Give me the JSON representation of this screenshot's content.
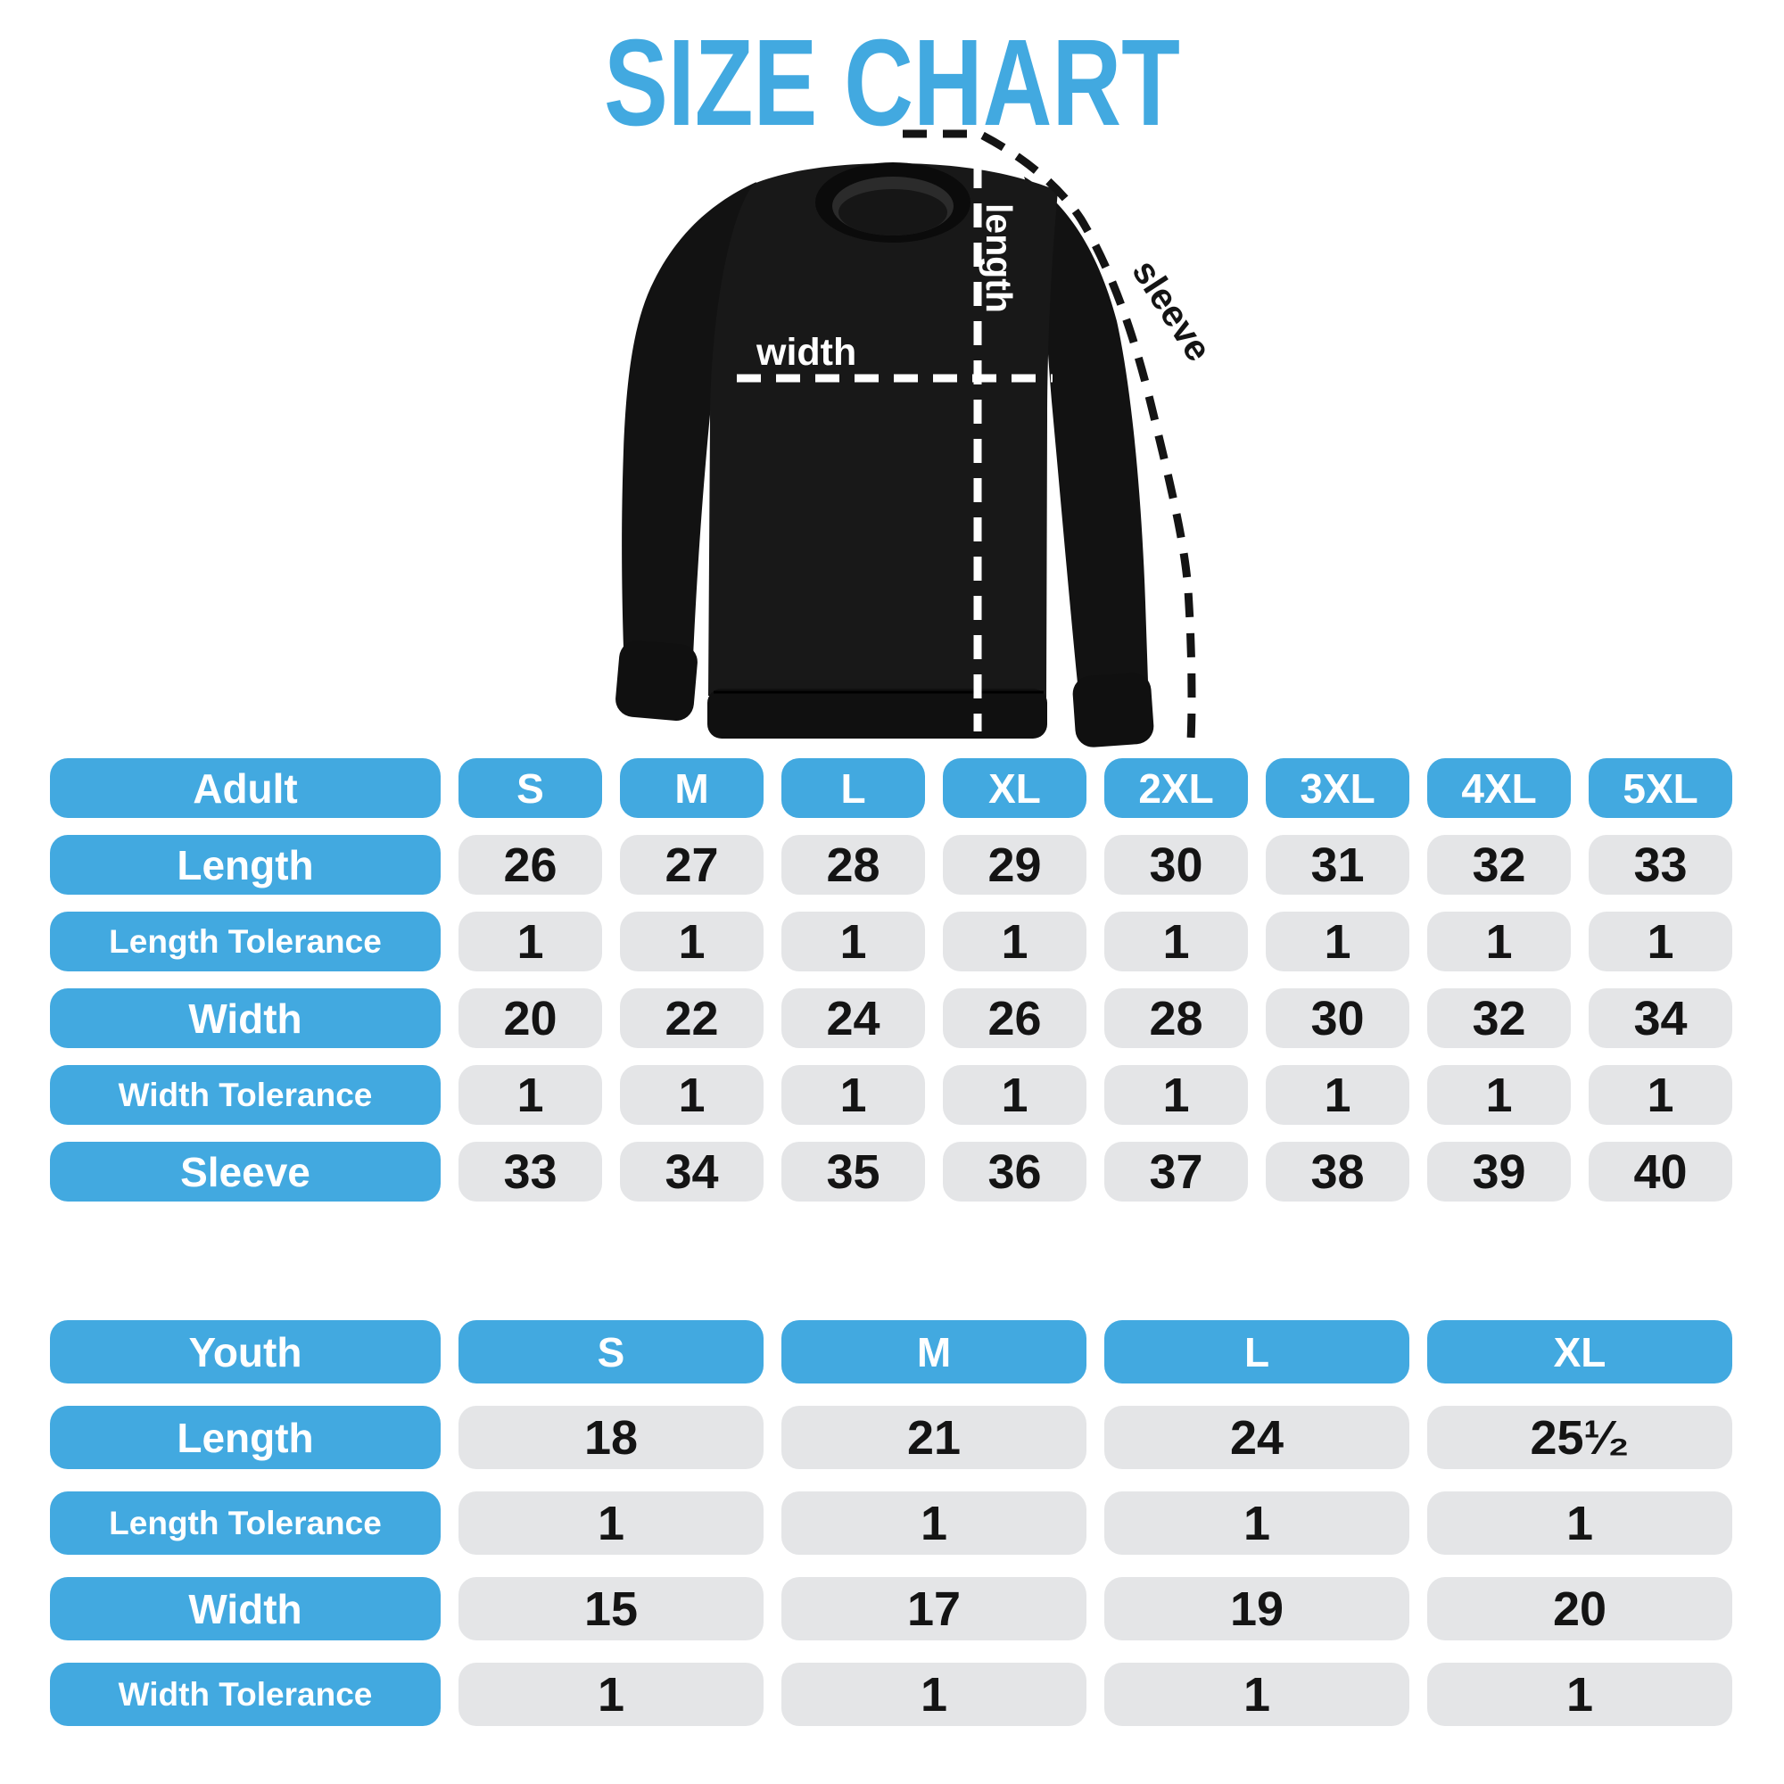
{
  "title": "SIZE CHART",
  "colors": {
    "accent_blue": "#42A9E0",
    "pill_gray": "#E4E5E7",
    "number_ink": "#141414",
    "background": "#FFFFFF",
    "garment_black": "#171717"
  },
  "diagram": {
    "garment": "black crewneck sweatshirt with dashed measurement guides",
    "width_label": "width",
    "length_label": "length",
    "sleeve_label": "sleeve"
  },
  "chart_data": [
    {
      "type": "table",
      "title": "Adult",
      "columns": [
        "Adult",
        "S",
        "M",
        "L",
        "XL",
        "2XL",
        "3XL",
        "4XL",
        "5XL"
      ],
      "rows": [
        [
          "Length",
          "26",
          "27",
          "28",
          "29",
          "30",
          "31",
          "32",
          "33"
        ],
        [
          "Length Tolerance",
          "1",
          "1",
          "1",
          "1",
          "1",
          "1",
          "1",
          "1"
        ],
        [
          "Width",
          "20",
          "22",
          "24",
          "26",
          "28",
          "30",
          "32",
          "34"
        ],
        [
          "Width Tolerance",
          "1",
          "1",
          "1",
          "1",
          "1",
          "1",
          "1",
          "1"
        ],
        [
          "Sleeve",
          "33",
          "34",
          "35",
          "36",
          "37",
          "38",
          "39",
          "40"
        ]
      ]
    },
    {
      "type": "table",
      "title": "Youth",
      "columns": [
        "Youth",
        "S",
        "M",
        "L",
        "XL"
      ],
      "rows": [
        [
          "Length",
          "18",
          "21",
          "24",
          "25¹⁄₂"
        ],
        [
          "Length Tolerance",
          "1",
          "1",
          "1",
          "1"
        ],
        [
          "Width",
          "15",
          "17",
          "19",
          "20"
        ],
        [
          "Width Tolerance",
          "1",
          "1",
          "1",
          "1"
        ]
      ]
    }
  ]
}
